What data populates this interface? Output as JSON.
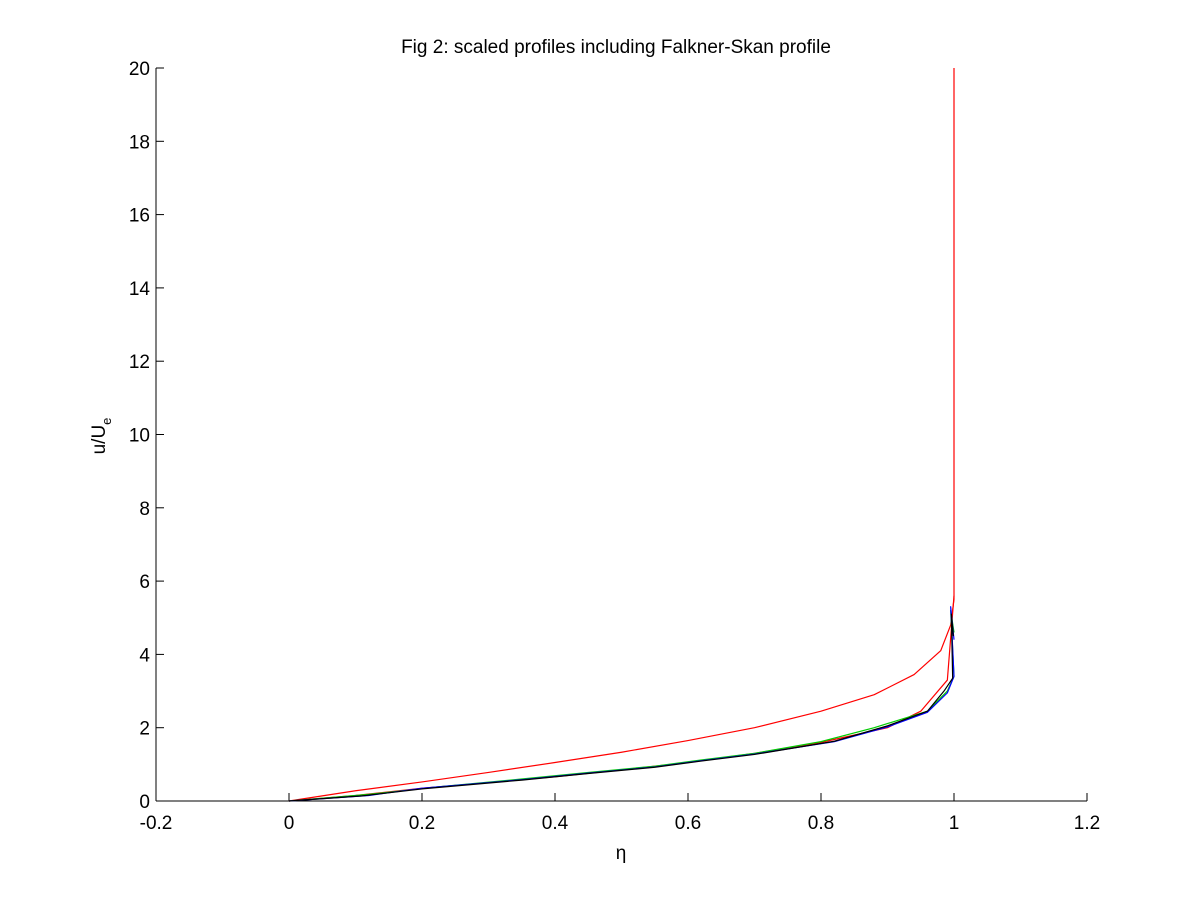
{
  "chart_data": {
    "type": "line",
    "title": "Fig 2: scaled profiles including Falkner-Skan profile",
    "xlabel": "η",
    "ylabel": {
      "main": "u/U",
      "subscript": "e"
    },
    "xlim": [
      -0.2,
      1.2
    ],
    "ylim": [
      0,
      20
    ],
    "xticks": [
      -0.2,
      0,
      0.2,
      0.4,
      0.6,
      0.8,
      1,
      1.2
    ],
    "xtick_labels": [
      "-0.2",
      "0",
      "0.2",
      "0.4",
      "0.6",
      "0.8",
      "1",
      "1.2"
    ],
    "yticks": [
      0,
      2,
      4,
      6,
      8,
      10,
      12,
      14,
      16,
      18,
      20
    ],
    "ytick_labels": [
      "0",
      "2",
      "4",
      "6",
      "8",
      "10",
      "12",
      "14",
      "16",
      "18",
      "20"
    ],
    "grid": false,
    "series": [
      {
        "color": "#ff0000",
        "x": [
          0,
          0.1,
          0.2,
          0.3,
          0.4,
          0.5,
          0.6,
          0.7,
          0.8,
          0.88,
          0.94,
          0.98,
          0.995,
          1.0,
          1.0,
          1.0
        ],
        "y": [
          0,
          0.28,
          0.52,
          0.78,
          1.05,
          1.33,
          1.65,
          2.0,
          2.45,
          2.9,
          3.45,
          4.1,
          4.8,
          5.5,
          11.4,
          20
        ]
      },
      {
        "color": "#ff0000",
        "x": [
          0,
          0.1,
          0.2,
          0.3,
          0.4,
          0.5,
          0.6,
          0.7,
          0.8,
          0.9,
          0.95,
          0.99,
          1.0
        ],
        "y": [
          0,
          0.15,
          0.35,
          0.5,
          0.66,
          0.85,
          1.05,
          1.3,
          1.6,
          2.0,
          2.45,
          3.3,
          5.6
        ]
      },
      {
        "color": "#00cc00",
        "x": [
          0,
          0.12,
          0.22,
          0.35,
          0.45,
          0.55,
          0.62,
          0.7,
          0.8,
          0.88,
          0.96,
          0.99,
          1.0,
          0.995,
          1.0
        ],
        "y": [
          0,
          0.18,
          0.38,
          0.6,
          0.78,
          0.95,
          1.12,
          1.3,
          1.62,
          2.0,
          2.45,
          3.0,
          3.4,
          5.2,
          4.6
        ]
      },
      {
        "color": "#0000ff",
        "x": [
          0,
          0.12,
          0.2,
          0.35,
          0.45,
          0.55,
          0.62,
          0.7,
          0.82,
          0.9,
          0.96,
          0.99,
          1.0,
          0.995,
          1.0
        ],
        "y": [
          0,
          0.15,
          0.35,
          0.58,
          0.76,
          0.93,
          1.1,
          1.28,
          1.62,
          2.02,
          2.42,
          2.95,
          3.4,
          5.3,
          4.4
        ]
      },
      {
        "color": "#000000",
        "x": [
          0,
          0.11,
          0.2,
          0.35,
          0.45,
          0.55,
          0.62,
          0.7,
          0.82,
          0.9,
          0.96,
          0.985,
          0.998,
          0.996,
          0.999
        ],
        "y": [
          0,
          0.14,
          0.33,
          0.57,
          0.75,
          0.92,
          1.09,
          1.27,
          1.63,
          2.05,
          2.45,
          3.0,
          3.35,
          5.1,
          4.5
        ]
      }
    ]
  }
}
